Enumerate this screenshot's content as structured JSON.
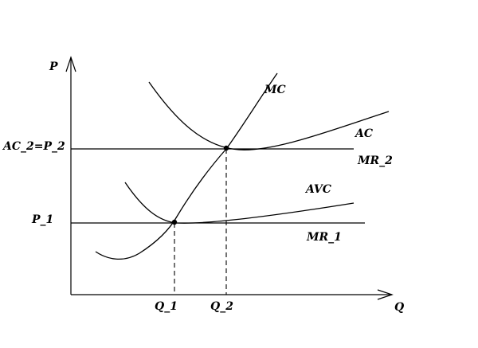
{
  "axes": {
    "y_label": "P",
    "x_label": "Q"
  },
  "curves": {
    "mc": "MC",
    "ac": "AC",
    "avc": "AVC",
    "mr_2": "MR_2",
    "mr_1": "MR_1"
  },
  "price_labels": {
    "p_2": "AC_2=P_2",
    "p_1": "P_1"
  },
  "quantity_labels": {
    "q_1": "Q_1",
    "q_2": "Q_2"
  }
}
